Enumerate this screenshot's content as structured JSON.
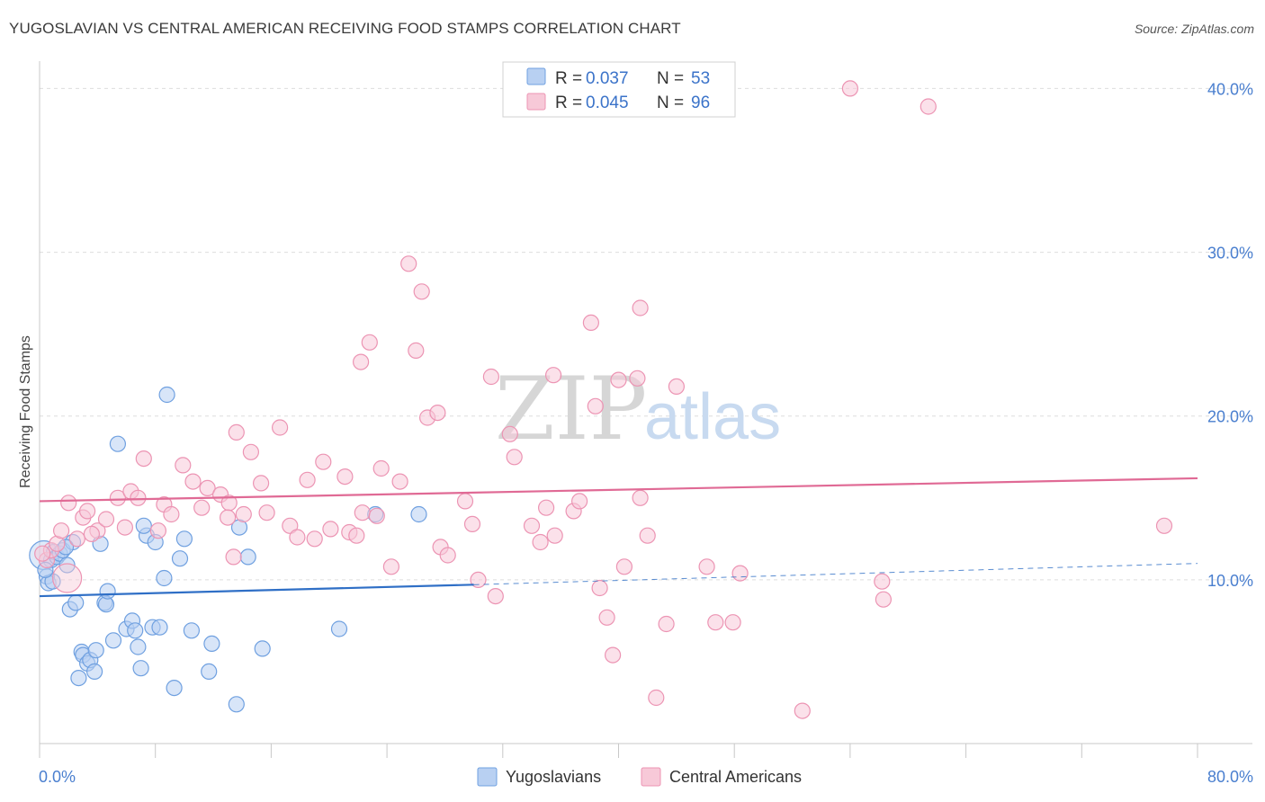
{
  "header": {
    "title": "YUGOSLAVIAN VS CENTRAL AMERICAN RECEIVING FOOD STAMPS CORRELATION CHART",
    "source": "Source: ZipAtlas.com"
  },
  "watermark": {
    "zip": "ZIP",
    "atlas": "atlas"
  },
  "chart_data": {
    "type": "scatter",
    "title": "YUGOSLAVIAN VS CENTRAL AMERICAN RECEIVING FOOD STAMPS CORRELATION CHART",
    "xlabel": "",
    "ylabel": "Receiving Food Stamps",
    "xlim": [
      0,
      80
    ],
    "ylim": [
      0,
      42
    ],
    "x_tick_labels": [
      {
        "value": 0,
        "label": "0.0%"
      },
      {
        "value": 80,
        "label": "80.0%"
      }
    ],
    "y_tick_labels": [
      {
        "value": 10,
        "label": "10.0%"
      },
      {
        "value": 20,
        "label": "20.0%"
      },
      {
        "value": 30,
        "label": "30.0%"
      },
      {
        "value": 40,
        "label": "40.0%"
      }
    ],
    "grid": true,
    "legend_position": "top-center",
    "stats": [
      {
        "series": "Yugoslavians",
        "r_label": "R =",
        "r": "0.037",
        "n_label": "N =",
        "n": "53"
      },
      {
        "series": "Central Americans",
        "r_label": "R =",
        "r": "0.045",
        "n_label": "N =",
        "n": "96"
      }
    ],
    "series": [
      {
        "name": "Yugoslavians",
        "color": "#6fa0e0",
        "fill": "#b8d0f2",
        "line_color": "#2f6fc6",
        "trend": {
          "x0": 0,
          "y0": 9.0,
          "x1": 30,
          "y1": 9.7,
          "dashed_to_x": 80,
          "dashed_to_y": 11.0
        },
        "points": [
          [
            0.3,
            11.5
          ],
          [
            0.5,
            10.2
          ],
          [
            0.6,
            9.8
          ],
          [
            0.8,
            11.2
          ],
          [
            1.0,
            11.7
          ],
          [
            1.2,
            11.4
          ],
          [
            1.4,
            11.6
          ],
          [
            1.6,
            11.8
          ],
          [
            1.9,
            10.9
          ],
          [
            2.1,
            8.2
          ],
          [
            2.3,
            12.3
          ],
          [
            2.5,
            8.6
          ],
          [
            2.9,
            5.6
          ],
          [
            3.0,
            5.4
          ],
          [
            3.3,
            4.9
          ],
          [
            3.5,
            5.1
          ],
          [
            3.8,
            4.4
          ],
          [
            3.9,
            5.7
          ],
          [
            4.5,
            8.6
          ],
          [
            4.6,
            8.5
          ],
          [
            4.7,
            9.3
          ],
          [
            5.1,
            6.3
          ],
          [
            5.4,
            18.3
          ],
          [
            6.0,
            7.0
          ],
          [
            6.4,
            7.5
          ],
          [
            6.6,
            6.9
          ],
          [
            6.8,
            5.9
          ],
          [
            7.0,
            4.6
          ],
          [
            7.4,
            12.7
          ],
          [
            7.2,
            13.3
          ],
          [
            7.8,
            7.1
          ],
          [
            8.0,
            12.3
          ],
          [
            8.3,
            7.1
          ],
          [
            8.6,
            10.1
          ],
          [
            8.8,
            21.3
          ],
          [
            9.3,
            3.4
          ],
          [
            9.7,
            11.3
          ],
          [
            10.0,
            12.5
          ],
          [
            10.5,
            6.9
          ],
          [
            11.7,
            4.4
          ],
          [
            11.9,
            6.1
          ],
          [
            13.6,
            2.4
          ],
          [
            13.8,
            13.2
          ],
          [
            14.4,
            11.4
          ],
          [
            15.4,
            5.8
          ],
          [
            20.7,
            7.0
          ],
          [
            23.2,
            14.0
          ],
          [
            26.2,
            14.0
          ],
          [
            0.9,
            9.9
          ],
          [
            2.7,
            4.0
          ],
          [
            4.2,
            12.2
          ],
          [
            1.8,
            12.0
          ],
          [
            0.4,
            10.6
          ]
        ]
      },
      {
        "name": "Central Americans",
        "color": "#ec94b3",
        "fill": "#f7c9d8",
        "line_color": "#e06a95",
        "trend": {
          "x0": 0,
          "y0": 14.8,
          "x1": 80,
          "y1": 16.2
        },
        "points": [
          [
            0.5,
            11.2
          ],
          [
            0.8,
            11.8
          ],
          [
            1.2,
            12.2
          ],
          [
            1.5,
            13.0
          ],
          [
            2.0,
            14.7
          ],
          [
            2.6,
            12.5
          ],
          [
            3.0,
            13.8
          ],
          [
            3.3,
            14.2
          ],
          [
            4.0,
            13.0
          ],
          [
            4.6,
            13.7
          ],
          [
            5.4,
            15.0
          ],
          [
            5.9,
            13.2
          ],
          [
            6.3,
            15.4
          ],
          [
            6.8,
            15.0
          ],
          [
            7.2,
            17.4
          ],
          [
            8.2,
            13.0
          ],
          [
            8.6,
            14.6
          ],
          [
            9.1,
            14.0
          ],
          [
            9.9,
            17.0
          ],
          [
            10.6,
            16.0
          ],
          [
            11.2,
            14.4
          ],
          [
            11.6,
            15.6
          ],
          [
            12.5,
            15.2
          ],
          [
            13.1,
            14.7
          ],
          [
            13.0,
            13.8
          ],
          [
            13.6,
            19.0
          ],
          [
            14.1,
            14.0
          ],
          [
            14.6,
            17.8
          ],
          [
            15.3,
            15.9
          ],
          [
            15.7,
            14.1
          ],
          [
            16.6,
            19.3
          ],
          [
            17.3,
            13.3
          ],
          [
            17.8,
            12.6
          ],
          [
            18.5,
            16.1
          ],
          [
            19.0,
            12.5
          ],
          [
            19.6,
            17.2
          ],
          [
            20.1,
            13.1
          ],
          [
            21.1,
            16.3
          ],
          [
            21.4,
            12.9
          ],
          [
            21.9,
            12.7
          ],
          [
            22.3,
            14.1
          ],
          [
            22.8,
            24.5
          ],
          [
            22.2,
            23.3
          ],
          [
            23.3,
            13.9
          ],
          [
            23.6,
            16.8
          ],
          [
            24.3,
            10.8
          ],
          [
            24.9,
            16.0
          ],
          [
            25.5,
            29.3
          ],
          [
            26.0,
            24.0
          ],
          [
            26.4,
            27.6
          ],
          [
            26.8,
            19.9
          ],
          [
            27.5,
            20.2
          ],
          [
            27.7,
            12.0
          ],
          [
            28.2,
            11.5
          ],
          [
            29.4,
            14.8
          ],
          [
            29.9,
            13.4
          ],
          [
            30.3,
            10.0
          ],
          [
            31.2,
            22.4
          ],
          [
            31.5,
            9.0
          ],
          [
            32.5,
            18.9
          ],
          [
            32.8,
            17.5
          ],
          [
            34.0,
            13.3
          ],
          [
            34.6,
            12.3
          ],
          [
            35.0,
            14.4
          ],
          [
            35.5,
            22.5
          ],
          [
            35.6,
            12.7
          ],
          [
            36.9,
            14.2
          ],
          [
            37.3,
            14.8
          ],
          [
            38.1,
            25.7
          ],
          [
            38.4,
            20.6
          ],
          [
            38.7,
            9.5
          ],
          [
            39.2,
            7.7
          ],
          [
            39.6,
            5.4
          ],
          [
            40.0,
            22.2
          ],
          [
            40.4,
            10.8
          ],
          [
            41.3,
            22.3
          ],
          [
            41.5,
            15.0
          ],
          [
            41.5,
            26.6
          ],
          [
            42.0,
            12.7
          ],
          [
            42.6,
            2.8
          ],
          [
            43.3,
            7.3
          ],
          [
            44.0,
            21.8
          ],
          [
            46.1,
            10.8
          ],
          [
            46.7,
            7.4
          ],
          [
            47.9,
            7.4
          ],
          [
            48.4,
            10.4
          ],
          [
            52.7,
            2.0
          ],
          [
            56.0,
            40.0
          ],
          [
            58.2,
            9.9
          ],
          [
            58.3,
            8.8
          ],
          [
            61.4,
            38.9
          ],
          [
            77.7,
            13.3
          ],
          [
            13.4,
            11.4
          ],
          [
            0.2,
            11.6
          ],
          [
            1.9,
            10.1
          ],
          [
            3.6,
            12.8
          ]
        ]
      }
    ]
  },
  "bottom_legend": [
    {
      "label": "Yugoslavians"
    },
    {
      "label": "Central Americans"
    }
  ]
}
